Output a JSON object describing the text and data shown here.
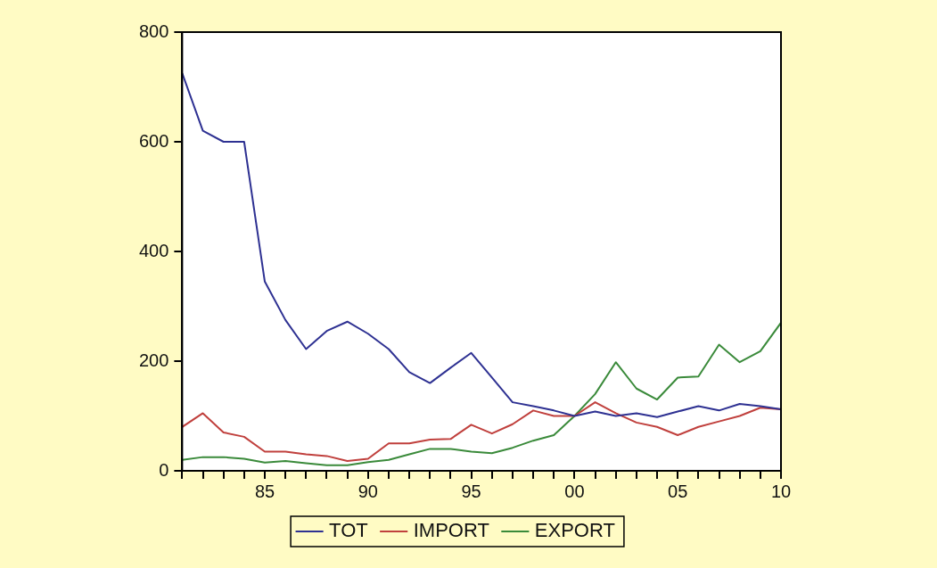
{
  "chart_data": {
    "type": "line",
    "x": [
      1981,
      1982,
      1983,
      1984,
      1985,
      1986,
      1987,
      1988,
      1989,
      1990,
      1991,
      1992,
      1993,
      1994,
      1995,
      1996,
      1997,
      1998,
      1999,
      2000,
      2001,
      2002,
      2003,
      2004,
      2005,
      2006,
      2007,
      2008,
      2009,
      2010
    ],
    "series": [
      {
        "name": "TOT",
        "color": "#2e3192",
        "values": [
          725,
          620,
          600,
          600,
          345,
          275,
          222,
          255,
          272,
          250,
          222,
          180,
          160,
          188,
          215,
          170,
          125,
          118,
          110,
          100,
          108,
          100,
          105,
          98,
          108,
          118,
          110,
          122,
          118,
          112
        ]
      },
      {
        "name": "IMPORT",
        "color": "#c0403d",
        "values": [
          80,
          105,
          70,
          62,
          35,
          35,
          30,
          27,
          18,
          22,
          50,
          50,
          57,
          58,
          84,
          68,
          85,
          110,
          100,
          100,
          125,
          105,
          88,
          80,
          65,
          80,
          90,
          100,
          115,
          112
        ]
      },
      {
        "name": "EXPORT",
        "color": "#3a8a3a",
        "values": [
          20,
          25,
          25,
          22,
          15,
          18,
          14,
          10,
          10,
          16,
          20,
          30,
          40,
          40,
          35,
          32,
          42,
          55,
          65,
          100,
          140,
          198,
          150,
          130,
          170,
          172,
          230,
          198,
          218,
          270
        ]
      }
    ],
    "xlim": [
      1981,
      2010
    ],
    "xticks": [
      {
        "value": 1981,
        "label": null
      },
      {
        "value": 1982,
        "label": null
      },
      {
        "value": 1983,
        "label": null
      },
      {
        "value": 1984,
        "label": null
      },
      {
        "value": 1985,
        "label": "85"
      },
      {
        "value": 1986,
        "label": null
      },
      {
        "value": 1987,
        "label": null
      },
      {
        "value": 1988,
        "label": null
      },
      {
        "value": 1989,
        "label": null
      },
      {
        "value": 1990,
        "label": "90"
      },
      {
        "value": 1991,
        "label": null
      },
      {
        "value": 1992,
        "label": null
      },
      {
        "value": 1993,
        "label": null
      },
      {
        "value": 1994,
        "label": null
      },
      {
        "value": 1995,
        "label": "95"
      },
      {
        "value": 1996,
        "label": null
      },
      {
        "value": 1997,
        "label": null
      },
      {
        "value": 1998,
        "label": null
      },
      {
        "value": 1999,
        "label": null
      },
      {
        "value": 2000,
        "label": "00"
      },
      {
        "value": 2001,
        "label": null
      },
      {
        "value": 2002,
        "label": null
      },
      {
        "value": 2003,
        "label": null
      },
      {
        "value": 2004,
        "label": null
      },
      {
        "value": 2005,
        "label": "05"
      },
      {
        "value": 2006,
        "label": null
      },
      {
        "value": 2007,
        "label": null
      },
      {
        "value": 2008,
        "label": null
      },
      {
        "value": 2009,
        "label": null
      },
      {
        "value": 2010,
        "label": "10"
      }
    ],
    "ylim": [
      0,
      800
    ],
    "yticks": [
      0,
      200,
      400,
      600,
      800
    ],
    "grid": false,
    "legend": "bottom",
    "marker": "none",
    "line_style": "solid"
  }
}
